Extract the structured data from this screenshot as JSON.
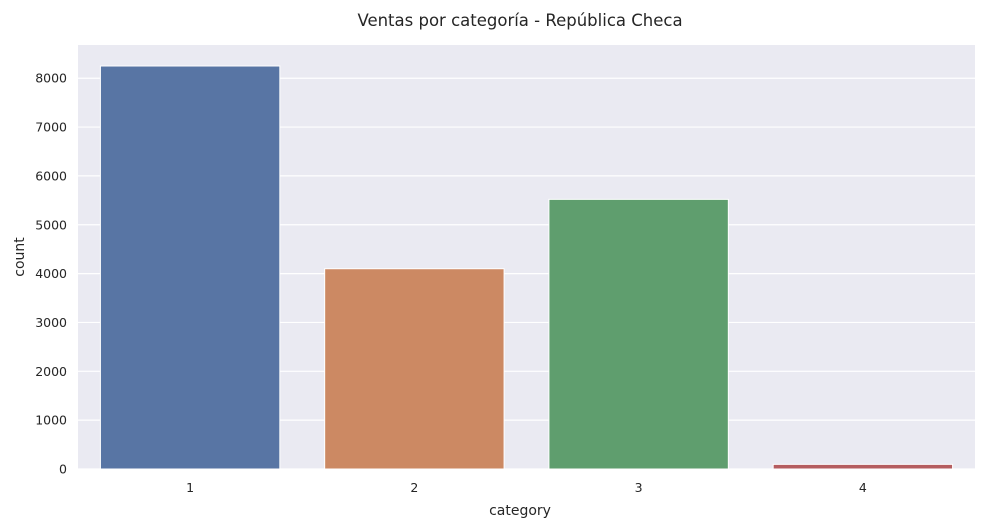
{
  "chart_data": {
    "type": "bar",
    "title": "Ventas por categoría - República Checa",
    "xlabel": "category",
    "ylabel": "count",
    "categories": [
      "1",
      "2",
      "3",
      "4"
    ],
    "values": [
      8250,
      4100,
      5520,
      95
    ],
    "ylim": [
      0,
      8680
    ],
    "yticks": [
      0,
      1000,
      2000,
      3000,
      4000,
      5000,
      6000,
      7000,
      8000
    ],
    "grid": true,
    "colors": [
      "#5875a4",
      "#cc8963",
      "#5f9e6e",
      "#b55d60"
    ],
    "background": "#eaeaf2"
  }
}
